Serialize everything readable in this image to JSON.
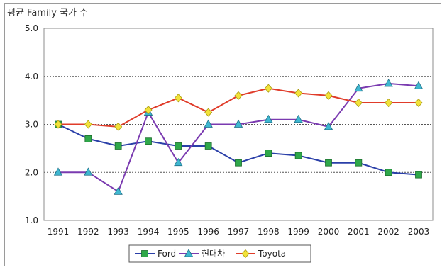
{
  "chart_data": {
    "type": "line",
    "title": "",
    "ylabel": "평균 Family 국가 수",
    "xlabel": "",
    "ylim": [
      1.0,
      5.0
    ],
    "yticks": [
      "1.0",
      "2.0",
      "3.0",
      "4.0",
      "5.0"
    ],
    "categories": [
      "1991",
      "1992",
      "1993",
      "1994",
      "1995",
      "1996",
      "1997",
      "1998",
      "1999",
      "2000",
      "2001",
      "2002",
      "2003"
    ],
    "grid": "horizontal dotted",
    "legend_position": "bottom",
    "series": [
      {
        "name": "Ford",
        "color": "#2a3fa8",
        "marker": "square",
        "marker_color": "#2fa84a",
        "values": [
          3.0,
          2.7,
          2.55,
          2.65,
          2.55,
          2.55,
          2.2,
          2.4,
          2.35,
          2.2,
          2.2,
          2.0,
          1.95
        ]
      },
      {
        "name": "현대차",
        "color": "#7a3ab0",
        "marker": "triangle",
        "marker_color": "#3fb7d0",
        "values": [
          2.0,
          2.0,
          1.6,
          3.25,
          2.2,
          3.0,
          3.0,
          3.1,
          3.1,
          2.95,
          3.75,
          3.85,
          3.8
        ]
      },
      {
        "name": "Toyota",
        "color": "#e03c2a",
        "marker": "diamond",
        "marker_color": "#f2e23a",
        "values": [
          3.0,
          3.0,
          2.95,
          3.3,
          3.55,
          3.25,
          3.6,
          3.75,
          3.65,
          3.6,
          3.45,
          3.45,
          3.45
        ]
      }
    ]
  }
}
